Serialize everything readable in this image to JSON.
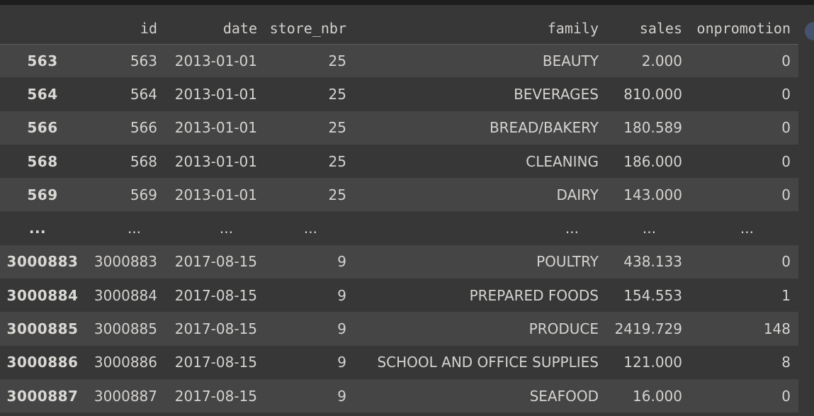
{
  "colors": {
    "background": "#373737",
    "row_stripe": "#454545",
    "top_strip": "#1d1d1d",
    "header_border": "#5b5b5b",
    "text": "#d5d3d0",
    "floating_circle": "#46536e"
  },
  "table": {
    "columns": [
      "",
      "id",
      "date",
      "store_nbr",
      "family",
      "sales",
      "onpromotion"
    ],
    "rows": [
      {
        "index": "563",
        "cells": [
          "563",
          "2013-01-01",
          "25",
          "BEAUTY",
          "2.000",
          "0"
        ]
      },
      {
        "index": "564",
        "cells": [
          "564",
          "2013-01-01",
          "25",
          "BEVERAGES",
          "810.000",
          "0"
        ]
      },
      {
        "index": "566",
        "cells": [
          "566",
          "2013-01-01",
          "25",
          "BREAD/BAKERY",
          "180.589",
          "0"
        ]
      },
      {
        "index": "568",
        "cells": [
          "568",
          "2013-01-01",
          "25",
          "CLEANING",
          "186.000",
          "0"
        ]
      },
      {
        "index": "569",
        "cells": [
          "569",
          "2013-01-01",
          "25",
          "DAIRY",
          "143.000",
          "0"
        ]
      },
      {
        "index": "...",
        "cells": [
          "...",
          "...",
          "...",
          "...",
          "...",
          "..."
        ]
      },
      {
        "index": "3000883",
        "cells": [
          "3000883",
          "2017-08-15",
          "9",
          "POULTRY",
          "438.133",
          "0"
        ]
      },
      {
        "index": "3000884",
        "cells": [
          "3000884",
          "2017-08-15",
          "9",
          "PREPARED FOODS",
          "154.553",
          "1"
        ]
      },
      {
        "index": "3000885",
        "cells": [
          "3000885",
          "2017-08-15",
          "9",
          "PRODUCE",
          "2419.729",
          "148"
        ]
      },
      {
        "index": "3000886",
        "cells": [
          "3000886",
          "2017-08-15",
          "9",
          "SCHOOL AND OFFICE SUPPLIES",
          "121.000",
          "8"
        ]
      },
      {
        "index": "3000887",
        "cells": [
          "3000887",
          "2017-08-15",
          "9",
          "SEAFOOD",
          "16.000",
          "0"
        ]
      }
    ]
  }
}
